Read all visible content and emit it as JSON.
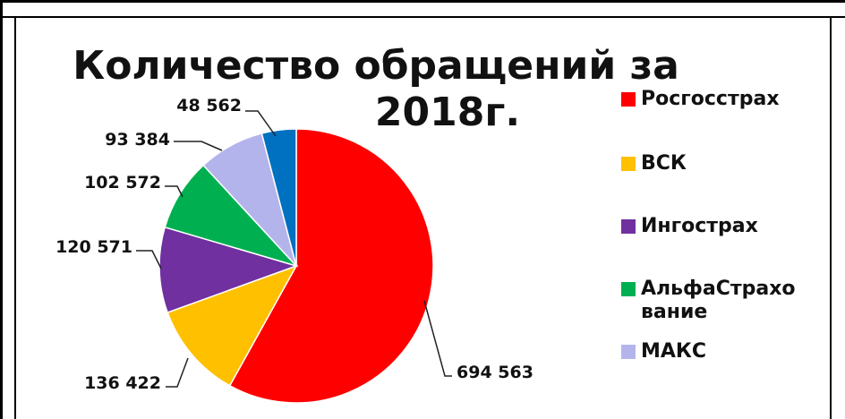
{
  "chart_data": {
    "type": "pie",
    "title": "Количество обращений за 2018г.",
    "title_lines": [
      "Количество обращений за",
      "2018г."
    ],
    "categories": [
      "Росгосстрах",
      "ВСК",
      "Ингострах",
      "АльфаСтрахование",
      "МАКС",
      ""
    ],
    "values": [
      694563,
      136422,
      120571,
      102572,
      93384,
      48562
    ],
    "value_labels": [
      "694 563",
      "136 422",
      "120 571",
      "102 572",
      "93 384",
      "48 562"
    ],
    "colors": [
      "#ff0000",
      "#ffc000",
      "#7030a0",
      "#00b050",
      "#b4b4ec",
      "#0070c0"
    ],
    "legend": {
      "position": "right",
      "entries": [
        {
          "label_lines": [
            "Росгосстрах"
          ],
          "color": "#ff0000"
        },
        {
          "label_lines": [
            "ВСК"
          ],
          "color": "#ffc000"
        },
        {
          "label_lines": [
            "Ингострах"
          ],
          "color": "#7030a0"
        },
        {
          "label_lines": [
            "АльфаСтрахо",
            "вание"
          ],
          "color": "#00b050"
        },
        {
          "label_lines": [
            "МАКС"
          ],
          "color": "#b4b4ec"
        }
      ]
    }
  }
}
